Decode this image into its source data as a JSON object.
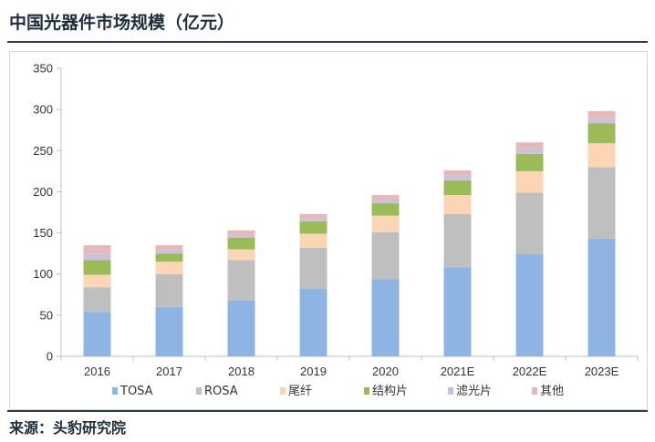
{
  "title": "中国光器件市场规模（亿元）",
  "source": "来源：头豹研究院",
  "chart_data": {
    "type": "bar",
    "stacked": true,
    "categories": [
      "2016",
      "2017",
      "2018",
      "2019",
      "2020",
      "2021E",
      "2022E",
      "2023E"
    ],
    "series": [
      {
        "name": "TOSA",
        "color": "#8eb4e3",
        "values": [
          54,
          60,
          68,
          82,
          94,
          108,
          124,
          143
        ]
      },
      {
        "name": "ROSA",
        "color": "#bfbfbf",
        "values": [
          30,
          40,
          49,
          50,
          57,
          65,
          75,
          87
        ]
      },
      {
        "name": "尾纤",
        "color": "#fcd5b4",
        "values": [
          15,
          15,
          13,
          17,
          20,
          23,
          26,
          29
        ]
      },
      {
        "name": "结构片",
        "color": "#9bbb59",
        "values": [
          18,
          10,
          14,
          15,
          15,
          18,
          21,
          24
        ]
      },
      {
        "name": "滤光片",
        "color": "#ccc0da",
        "values": [
          8,
          5,
          4,
          4,
          5,
          6,
          7,
          7
        ]
      },
      {
        "name": "其他",
        "color": "#e6b9b8",
        "values": [
          10,
          5,
          5,
          5,
          5,
          6,
          7,
          8
        ]
      }
    ],
    "ylim": [
      0,
      350
    ],
    "yticks": [
      0,
      50,
      100,
      150,
      200,
      250,
      300,
      350
    ],
    "grid": false,
    "legend_position": "bottom"
  }
}
